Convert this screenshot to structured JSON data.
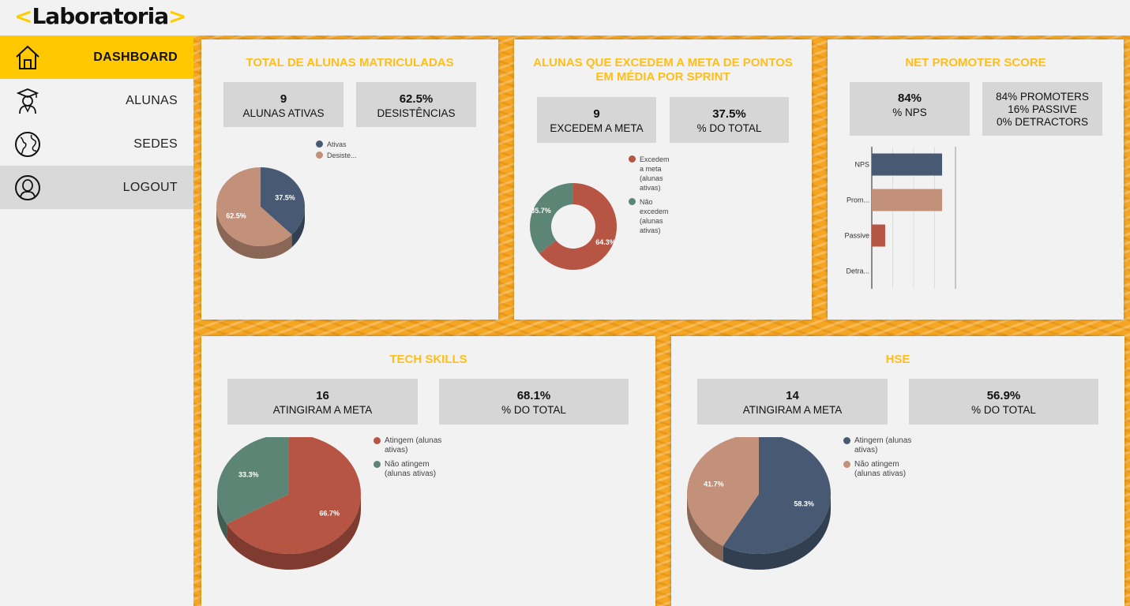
{
  "app": {
    "logo_text": "Laboratoria",
    "logo_left": "<",
    "logo_right": ">"
  },
  "colors": {
    "accent": "#ffc800",
    "title": "#ffbe1a",
    "navy": "#485a73",
    "tan": "#c39179",
    "red": "#b75545",
    "teal": "#5d8575"
  },
  "sidebar": {
    "items": [
      {
        "label": "DASHBOARD",
        "icon": "home-icon"
      },
      {
        "label": "ALUNAS",
        "icon": "graduate-icon"
      },
      {
        "label": "SEDES",
        "icon": "globe-icon"
      },
      {
        "label": "LOGOUT",
        "icon": "user-circle-icon"
      }
    ]
  },
  "cards": {
    "matriculadas": {
      "title": "TOTAL DE ALUNAS MATRICULADAS",
      "stat1": {
        "num": "9",
        "label": "ALUNAS ATIVAS"
      },
      "stat2": {
        "num": "62.5%",
        "label": "DESISTÊNCIAS"
      },
      "legend": [
        "Ativas",
        "Desiste..."
      ]
    },
    "meta_pontos": {
      "title_line1": "ALUNAS QUE EXCEDEM A META DE PONTOS",
      "title_line2": "EM MÉDIA POR SPRINT",
      "stat1": {
        "num": "9",
        "label": "EXCEDEM A META"
      },
      "stat2": {
        "num": "37.5%",
        "label": "% DO TOTAL"
      },
      "legend": [
        [
          "Excedem",
          "a meta",
          "(alunas",
          "ativas)"
        ],
        [
          "Não",
          "excedem",
          "(alunas",
          "ativas)"
        ]
      ]
    },
    "nps": {
      "title": "NET PROMOTER SCORE",
      "stat1": {
        "num": "84%",
        "label": "% NPS"
      },
      "stat2": {
        "line1": "84% PROMOTERS",
        "line2": "16% PASSIVE",
        "line3": "0% DETRACTORS"
      }
    },
    "tech": {
      "title": "TECH SKILLS",
      "stat1": {
        "num": "16",
        "label": "ATINGIRAM A META"
      },
      "stat2": {
        "num": "68.1%",
        "label": "% DO TOTAL"
      },
      "legend": [
        [
          "Atingem (alunas",
          "ativas)"
        ],
        [
          "Não atingem",
          "(alunas ativas)"
        ]
      ]
    },
    "hse": {
      "title": "HSE",
      "stat1": {
        "num": "14",
        "label": "ATINGIRAM A META"
      },
      "stat2": {
        "num": "56.9%",
        "label": "% DO TOTAL"
      },
      "legend": [
        [
          "Atingem (alunas",
          "ativas)"
        ],
        [
          "Não atingem",
          "(alunas ativas)"
        ]
      ]
    }
  },
  "chart_data": [
    {
      "type": "pie",
      "id": "matriculadas",
      "labels": [
        "Ativas",
        "Desiste..."
      ],
      "values": [
        37.5,
        62.5
      ],
      "data_labels": [
        "37.5%",
        "62.5%"
      ]
    },
    {
      "type": "pie",
      "id": "meta_pontos",
      "variant": "donut",
      "labels": [
        "Excedem a meta (alunas ativas)",
        "Não excedem (alunas ativas)"
      ],
      "values": [
        64.3,
        35.7
      ],
      "data_labels": [
        "64.3%",
        "35.7%"
      ]
    },
    {
      "type": "bar",
      "id": "nps",
      "orientation": "horizontal",
      "categories": [
        "NPS",
        "Prom...",
        "Passive",
        "Detra..."
      ],
      "values": [
        84,
        84,
        16,
        0
      ],
      "xlim": [
        0,
        100
      ]
    },
    {
      "type": "pie",
      "id": "tech",
      "labels": [
        "Atingem (alunas ativas)",
        "Não atingem (alunas ativas)"
      ],
      "values": [
        66.7,
        33.3
      ],
      "data_labels": [
        "66.7%",
        "33.3%"
      ]
    },
    {
      "type": "pie",
      "id": "hse",
      "labels": [
        "Atingem (alunas ativas)",
        "Não atingem (alunas ativas)"
      ],
      "values": [
        58.3,
        41.7
      ],
      "data_labels": [
        "58.3%",
        "41.7%"
      ]
    }
  ]
}
